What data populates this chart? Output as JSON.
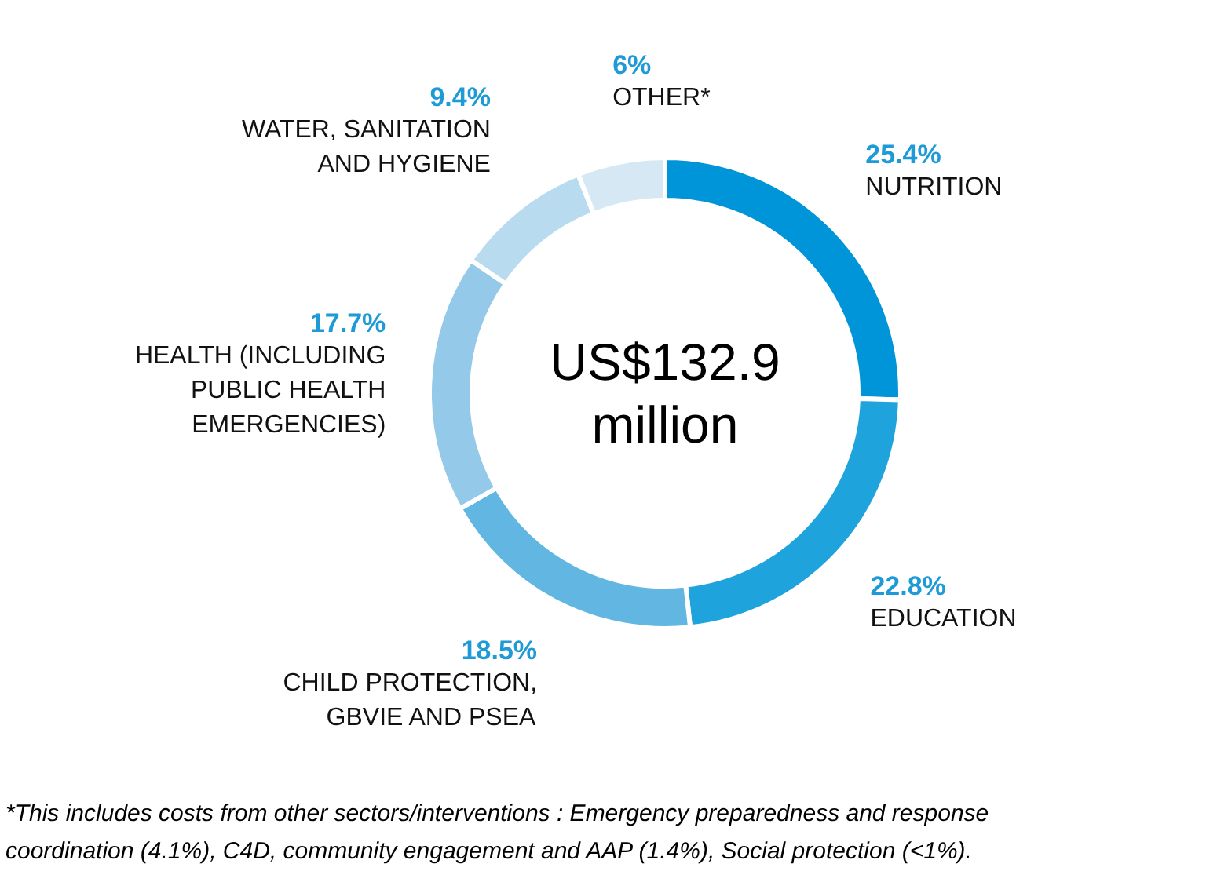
{
  "chart_data": {
    "type": "donut",
    "categories": [
      "NUTRITION",
      "EDUCATION",
      "CHILD PROTECTION, GBVIE AND PSEA",
      "HEALTH (INCLUDING PUBLIC HEALTH EMERGENCIES)",
      "WATER, SANITATION AND HYGIENE",
      "OTHER*"
    ],
    "values": [
      25.4,
      22.8,
      18.5,
      17.7,
      9.4,
      6
    ],
    "value_labels": [
      "25.4%",
      "22.8%",
      "18.5%",
      "17.7%",
      "9.4%",
      "6%"
    ],
    "colors": [
      "#0094d8",
      "#1fa3dc",
      "#62b6e2",
      "#94c9e9",
      "#b8dbf0",
      "#d6e8f4"
    ],
    "annotations": [
      "US$132.9 million",
      "*This includes costs from other sectors/interventions : Emergency preparedness and response coordination (4.1%), C4D, community engagement and AAP (1.4%), Social protection (<1%)."
    ]
  }
}
